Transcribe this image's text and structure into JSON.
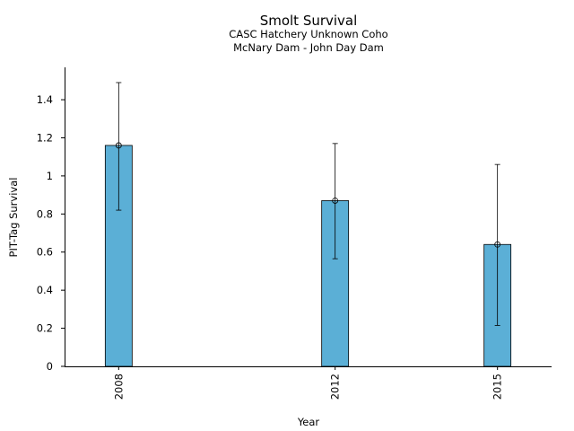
{
  "chart_data": {
    "type": "bar",
    "title": "Smolt Survival",
    "subtitle_lines": [
      "CASC Hatchery Unknown Coho",
      "McNary Dam - John Day Dam"
    ],
    "xlabel": "Year",
    "ylabel": "PIT-Tag Survival",
    "categories": [
      "2008",
      "2012",
      "2015"
    ],
    "x": [
      2008,
      2012,
      2015
    ],
    "xlim": [
      2007,
      2016
    ],
    "values": [
      1.16,
      0.87,
      0.64
    ],
    "error_lower": [
      0.82,
      0.565,
      0.215
    ],
    "error_upper": [
      1.49,
      1.17,
      1.06
    ],
    "ylim": [
      0,
      1.57
    ],
    "yticks": [
      0,
      0.2,
      0.4,
      0.6,
      0.8,
      1,
      1.2,
      1.4
    ],
    "ytick_labels": [
      "0",
      "0.2",
      "0.4",
      "0.6",
      "0.8",
      "1",
      "1.2",
      "1.4"
    ],
    "bar_color": "#5bafd6",
    "grid": false,
    "legend": "none"
  }
}
